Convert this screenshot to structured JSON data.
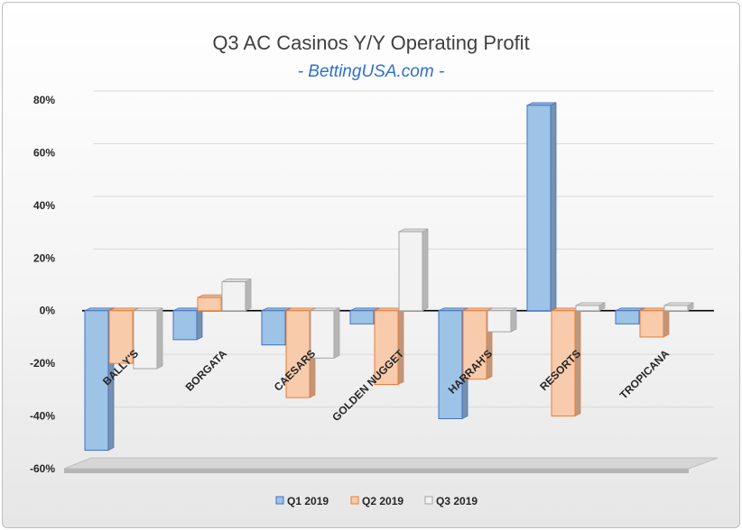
{
  "chart_data": {
    "type": "bar",
    "title": "Q3 AC Casinos Y/Y Operating Profit",
    "subtitle": "- BettingUSA.com -",
    "categories": [
      "BALLY'S",
      "BORGATA",
      "CAESARS",
      "GOLDEN NUGGET",
      "HARRAH'S",
      "RESORTS",
      "TROPICANA"
    ],
    "series": [
      {
        "name": "Q1 2019",
        "values": [
          -53,
          -11,
          -13,
          -5,
          -41,
          78,
          -5
        ],
        "color": "#9dc3e6",
        "edge": "#4472c4"
      },
      {
        "name": "Q2 2019",
        "values": [
          -20,
          5,
          -33,
          -28,
          -26,
          -40,
          -10
        ],
        "color": "#f8cbad",
        "edge": "#ed7d31"
      },
      {
        "name": "Q3 2019",
        "values": [
          -22,
          11,
          -18,
          30,
          -8,
          2,
          2
        ],
        "color": "#f2f2f2",
        "edge": "#a5a5a5"
      }
    ],
    "ylim": [
      -60,
      80
    ],
    "yticks": [
      80,
      60,
      40,
      20,
      0,
      -20,
      -40,
      -60
    ],
    "ytick_labels": [
      "80%",
      "60%",
      "40%",
      "20%",
      "0%",
      "-20%",
      "-40%",
      "-60%"
    ],
    "xlabel": "",
    "ylabel": "",
    "grid": true,
    "legend_position": "bottom"
  }
}
